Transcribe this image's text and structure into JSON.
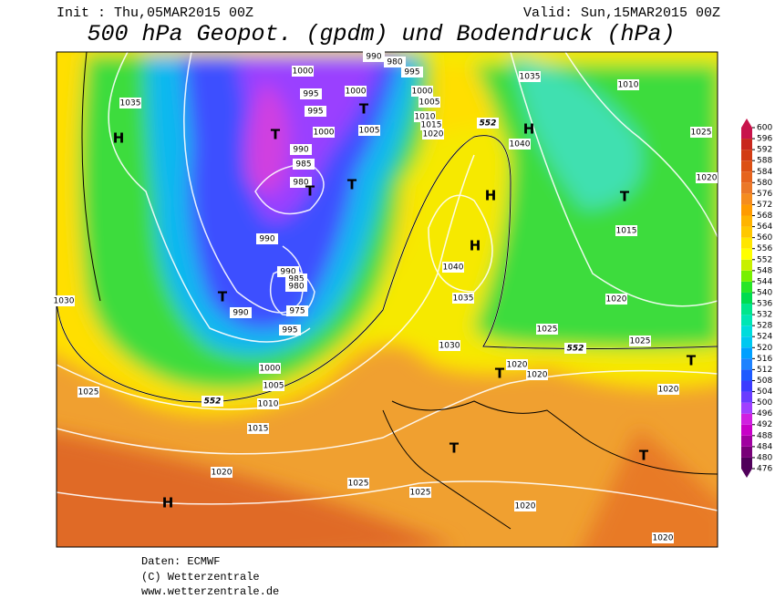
{
  "header": {
    "init": "Init : Thu,05MAR2015 00Z",
    "valid": "Valid: Sun,15MAR2015 00Z",
    "title": "500 hPa Geopot. (gpdm) und Bodendruck (hPa)"
  },
  "map": {
    "labels": [
      "1035",
      "H",
      "1000",
      "990",
      "980",
      "995",
      "995",
      "1000",
      "995",
      "1005",
      "1000",
      "T",
      "990",
      "985",
      "980",
      "T",
      "T",
      "T",
      "990",
      "990",
      "985",
      "980",
      "975",
      "995",
      "T",
      "990",
      "1030",
      "1000",
      "1005",
      "1010",
      "552",
      "1015",
      "1025",
      "1020",
      "H",
      "1025",
      "1025",
      "1020",
      "1020",
      "T",
      "T",
      "1020",
      "T",
      "1025",
      "552",
      "1025",
      "1020",
      "1015",
      "T",
      "1020",
      "1025",
      "1010",
      "1035",
      "1040",
      "H",
      "552",
      "H",
      "H",
      "1040",
      "1035",
      "1030",
      "T",
      "1020",
      "1020",
      "1010",
      "1015",
      "1020",
      "1005",
      "1000"
    ]
  },
  "colorbar": {
    "ticks": [
      476,
      480,
      484,
      488,
      492,
      496,
      500,
      504,
      508,
      512,
      516,
      520,
      524,
      528,
      532,
      536,
      540,
      544,
      548,
      552,
      556,
      560,
      564,
      568,
      572,
      576,
      580,
      584,
      588,
      592,
      596,
      600
    ],
    "colors": [
      "#50005a",
      "#780078",
      "#a000a0",
      "#c800c8",
      "#d020e0",
      "#a040ff",
      "#6a3cff",
      "#3c3cff",
      "#1e5aff",
      "#1e82ff",
      "#00a0ff",
      "#00c8f0",
      "#00dcdc",
      "#00e6b4",
      "#00e68c",
      "#00dc50",
      "#28e628",
      "#78f000",
      "#c8f000",
      "#ffff00",
      "#ffe600",
      "#ffc800",
      "#ffb400",
      "#ff9b00",
      "#f58c1e",
      "#eb7828",
      "#e6641e",
      "#dc5014",
      "#d23c14",
      "#c8281e",
      "#c8144b"
    ]
  },
  "footer": {
    "source": "Daten: ECMWF",
    "copyright": "(C) Wetterzentrale",
    "url": "www.wetterzentrale.de"
  }
}
